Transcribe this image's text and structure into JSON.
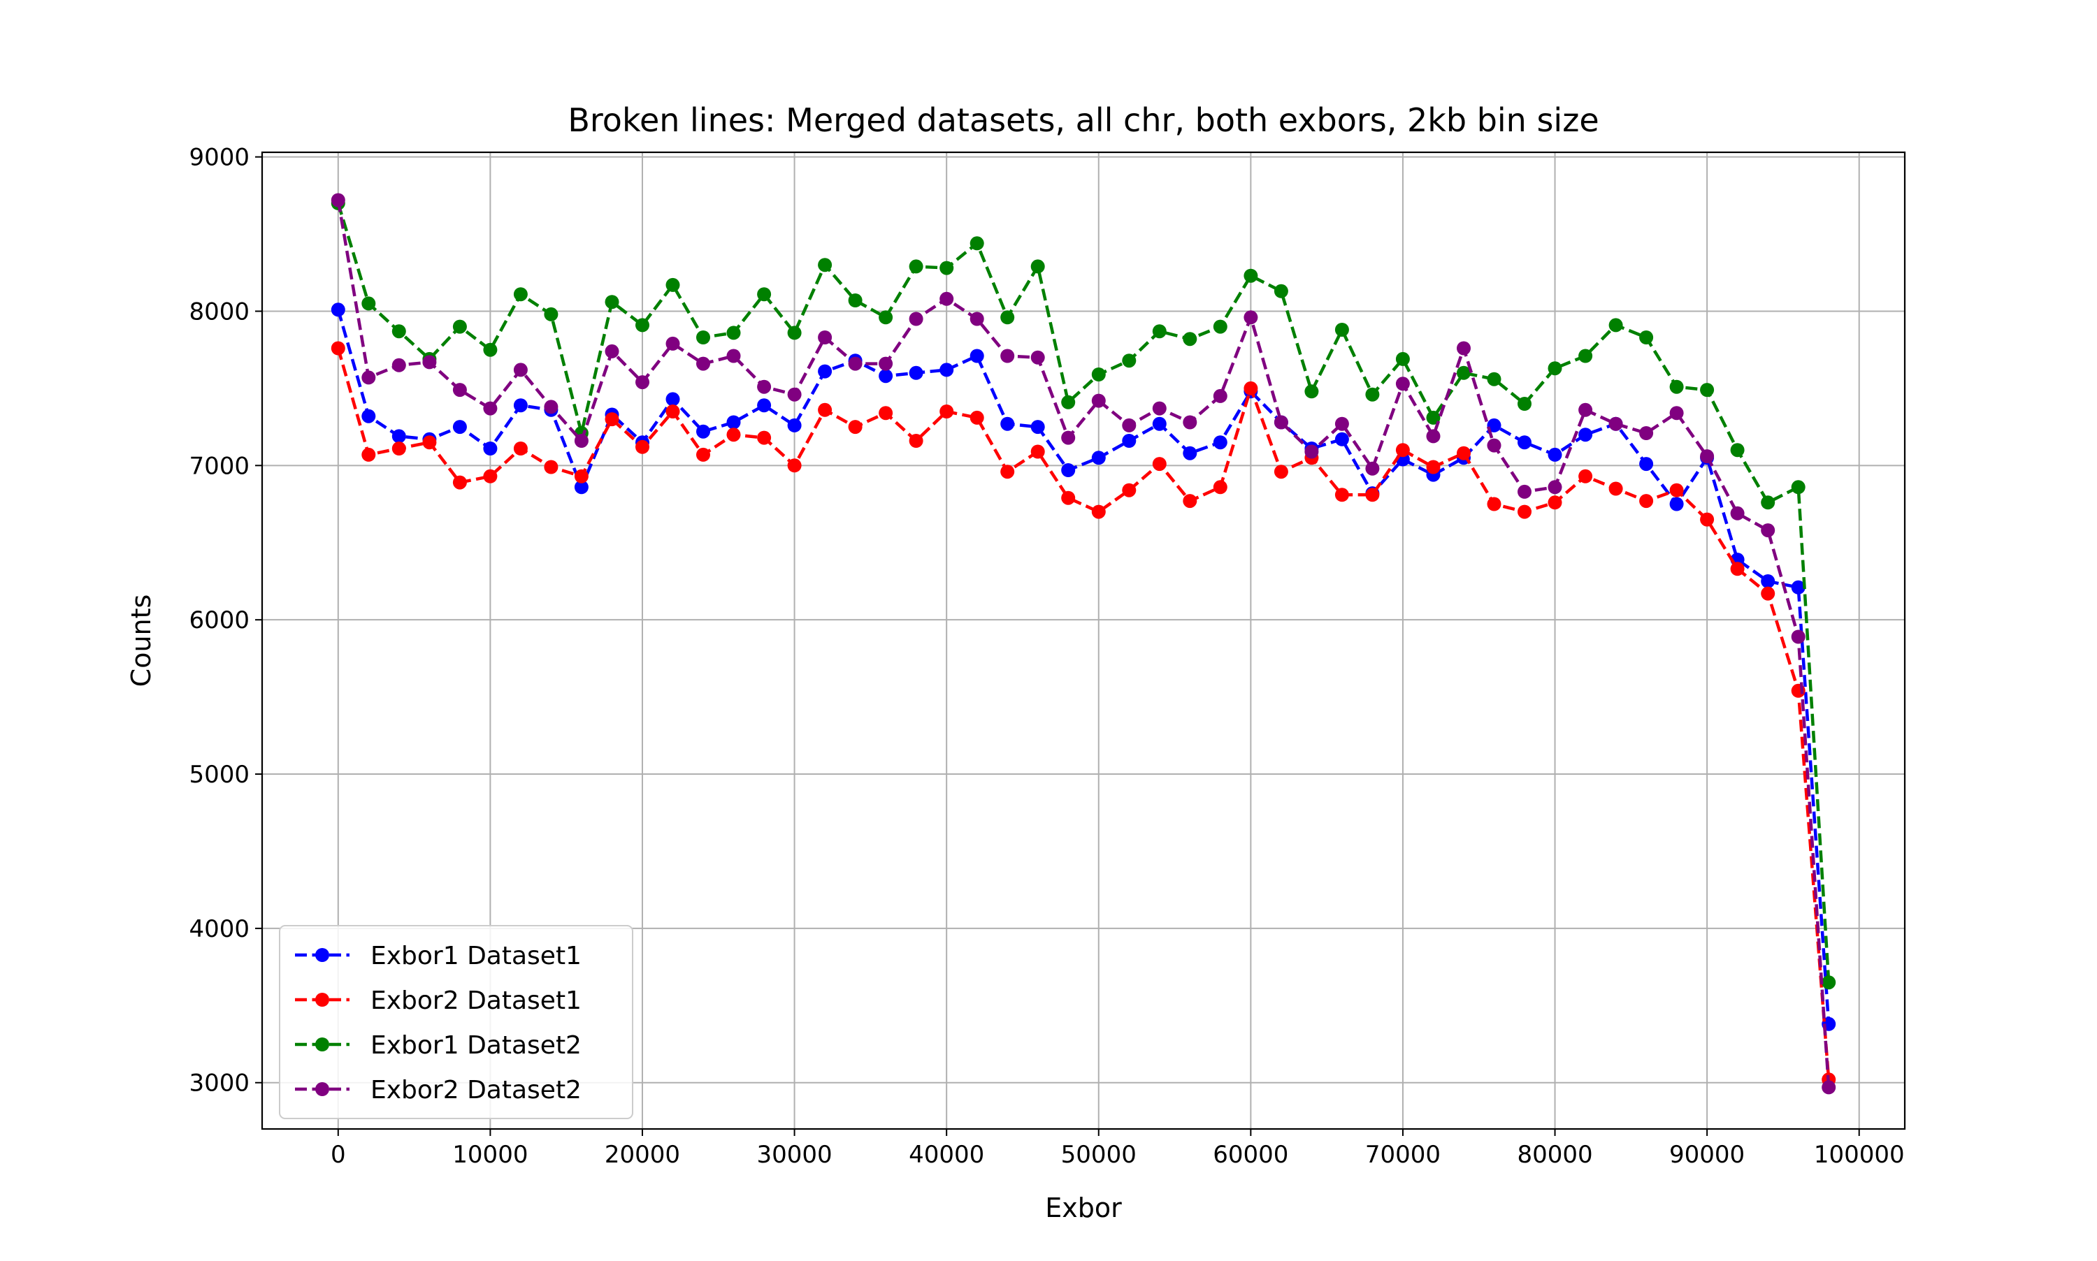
{
  "chart_data": {
    "type": "line",
    "title": "Broken lines: Merged datasets, all chr, both exbors, 2kb bin size",
    "xlabel": "Exbor",
    "ylabel": "Counts",
    "xlim": [
      -5000,
      103000
    ],
    "ylim": [
      2700,
      9030
    ],
    "xticks": [
      0,
      10000,
      20000,
      30000,
      40000,
      50000,
      60000,
      70000,
      80000,
      90000,
      100000
    ],
    "yticks": [
      3000,
      4000,
      5000,
      6000,
      7000,
      8000,
      9000
    ],
    "grid": true,
    "legend_position": "lower-left",
    "line_style": "dashed",
    "marker": "circle",
    "x": [
      0,
      2000,
      4000,
      6000,
      8000,
      10000,
      12000,
      14000,
      16000,
      18000,
      20000,
      22000,
      24000,
      26000,
      28000,
      30000,
      32000,
      34000,
      36000,
      38000,
      40000,
      42000,
      44000,
      46000,
      48000,
      50000,
      52000,
      54000,
      56000,
      58000,
      60000,
      62000,
      64000,
      66000,
      68000,
      70000,
      72000,
      74000,
      76000,
      78000,
      80000,
      82000,
      84000,
      86000,
      88000,
      90000,
      92000,
      94000,
      96000,
      98000
    ],
    "series": [
      {
        "name": "Exbor1 Dataset1",
        "color": "#0000ff",
        "values": [
          8010,
          7320,
          7190,
          7170,
          7250,
          7110,
          7390,
          7360,
          6860,
          7330,
          7150,
          7430,
          7220,
          7280,
          7390,
          7260,
          7610,
          7680,
          7580,
          7600,
          7620,
          7710,
          7270,
          7250,
          6970,
          7050,
          7160,
          7270,
          7080,
          7150,
          7480,
          7280,
          7110,
          7170,
          6820,
          7040,
          6940,
          7050,
          7260,
          7150,
          7070,
          7200,
          7270,
          7010,
          6750,
          7050,
          6390,
          6250,
          6210,
          3380
        ]
      },
      {
        "name": "Exbor2 Dataset1",
        "color": "#ff0000",
        "values": [
          7760,
          7070,
          7110,
          7150,
          6890,
          6930,
          7110,
          6990,
          6930,
          7300,
          7120,
          7350,
          7070,
          7200,
          7180,
          7000,
          7360,
          7250,
          7340,
          7160,
          7350,
          7310,
          6960,
          7090,
          6790,
          6700,
          6840,
          7010,
          6770,
          6860,
          7500,
          6960,
          7050,
          6810,
          6810,
          7100,
          6990,
          7080,
          6750,
          6700,
          6760,
          6930,
          6850,
          6770,
          6840,
          6650,
          6330,
          6170,
          5540,
          3020
        ]
      },
      {
        "name": "Exbor1 Dataset2",
        "color": "#008000",
        "values": [
          8700,
          8050,
          7870,
          7690,
          7900,
          7750,
          8110,
          7980,
          7210,
          8060,
          7910,
          8170,
          7830,
          7860,
          8110,
          7860,
          8300,
          8070,
          7960,
          8290,
          8280,
          8440,
          7960,
          8290,
          7410,
          7590,
          7680,
          7870,
          7820,
          7900,
          8230,
          8130,
          7480,
          7880,
          7460,
          7690,
          7310,
          7600,
          7560,
          7400,
          7630,
          7710,
          7910,
          7830,
          7510,
          7490,
          7100,
          6760,
          6860,
          3650
        ]
      },
      {
        "name": "Exbor2 Dataset2",
        "color": "#800080",
        "values": [
          8720,
          7570,
          7650,
          7670,
          7490,
          7370,
          7620,
          7380,
          7160,
          7740,
          7540,
          7790,
          7660,
          7710,
          7510,
          7460,
          7830,
          7660,
          7660,
          7950,
          8080,
          7950,
          7710,
          7700,
          7180,
          7420,
          7260,
          7370,
          7280,
          7450,
          7960,
          7280,
          7090,
          7270,
          6980,
          7530,
          7190,
          7760,
          7130,
          6830,
          6860,
          7360,
          7270,
          7210,
          7340,
          7060,
          6690,
          6580,
          5890,
          2970
        ]
      }
    ]
  }
}
